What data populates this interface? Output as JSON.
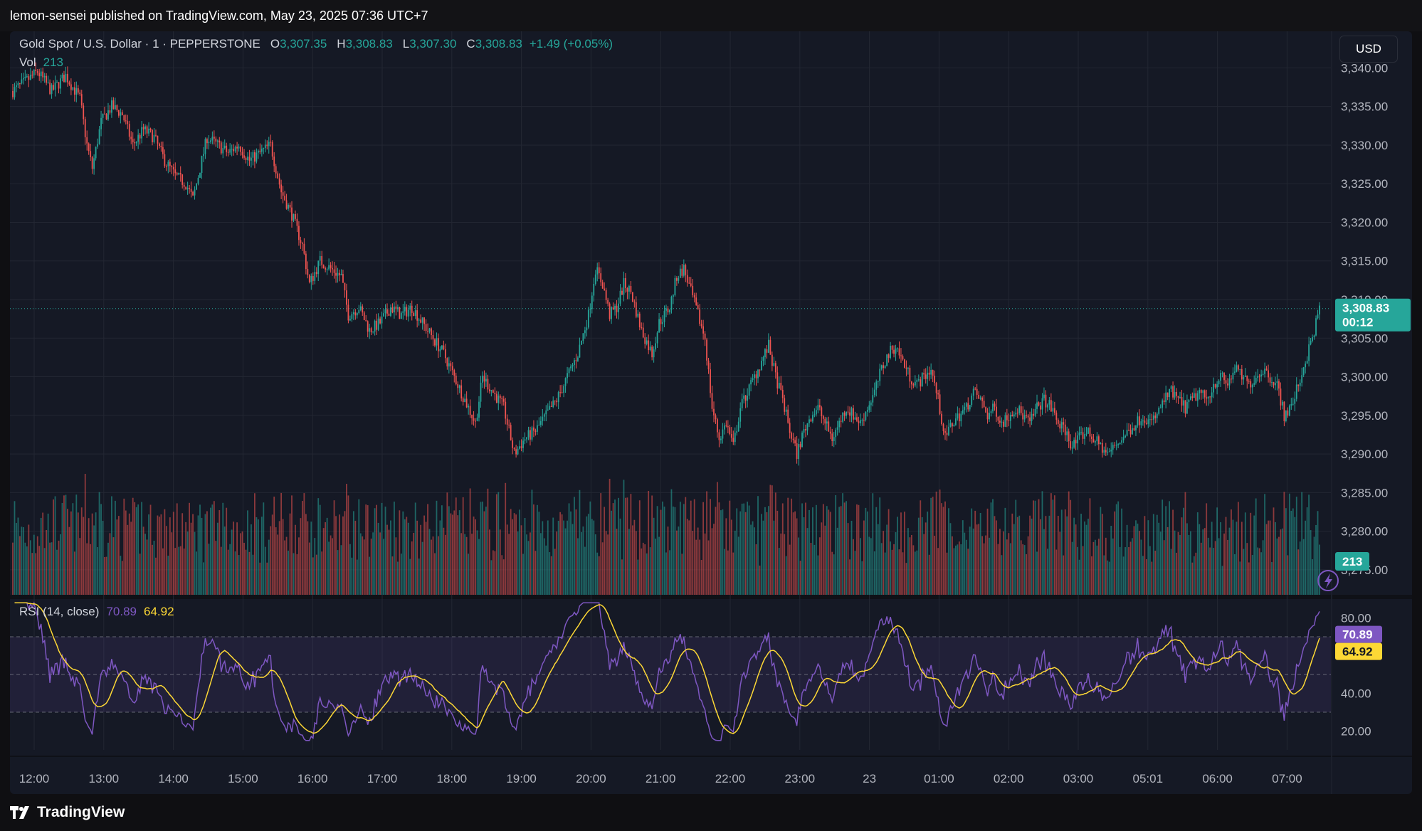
{
  "banner": {
    "text": "lemon-sensei published on TradingView.com, May 23, 2025 07:36 UTC+7"
  },
  "brand": {
    "name": "TradingView"
  },
  "symbol": {
    "title": "Gold Spot / U.S. Dollar · 1 · PEPPERSTONE",
    "open_label": "O",
    "open": "3,307.35",
    "high_label": "H",
    "high": "3,308.83",
    "low_label": "L",
    "low": "3,307.30",
    "close_label": "C",
    "close": "3,308.83",
    "change": "+1.49 (+0.05%)"
  },
  "volume_legend": {
    "label": "Vol",
    "value": "213"
  },
  "rsi_legend": {
    "label": "RSI (14, close)",
    "rsi": "70.89",
    "ma": "64.92"
  },
  "currency": {
    "label": "USD"
  },
  "price_badge": {
    "price": "3,308.83",
    "countdown": "00:12"
  },
  "volume_badge": {
    "value": "213"
  },
  "rsi_badges": {
    "rsi": "70.89",
    "ma": "64.92"
  },
  "colors": {
    "up": "#26a69a",
    "down": "#ef5350",
    "rsi_line": "#7e57c2",
    "rsi_ma": "#fdd835",
    "background": "#151925",
    "grid": "#232733"
  },
  "chart_data": [
    {
      "type": "candlestick",
      "title": "Gold Spot / U.S. Dollar · 1 · PEPPERSTONE",
      "x_ticks": [
        "12:00",
        "13:00",
        "14:00",
        "15:00",
        "16:00",
        "17:00",
        "18:00",
        "19:00",
        "20:00",
        "21:00",
        "22:00",
        "23:00",
        "23",
        "01:00",
        "02:00",
        "03:00",
        "05:01",
        "06:00",
        "07:00"
      ],
      "y_ticks": [
        "3,340.00",
        "3,335.00",
        "3,330.00",
        "3,325.00",
        "3,320.00",
        "3,315.00",
        "3,310.00",
        "3,305.00",
        "3,300.00",
        "3,295.00",
        "3,290.00",
        "3,285.00",
        "3,280.00",
        "3,275.00"
      ],
      "ylim": [
        3272.5,
        3344
      ],
      "last_price": 3308.83,
      "close_path": [
        [
          0,
          3337
        ],
        [
          6,
          3338
        ],
        [
          14,
          3339.5
        ],
        [
          22,
          3337
        ],
        [
          30,
          3339
        ],
        [
          38,
          3336
        ],
        [
          42,
          3330
        ],
        [
          45,
          3327
        ],
        [
          50,
          3333
        ],
        [
          56,
          3335
        ],
        [
          62,
          3334
        ],
        [
          68,
          3330
        ],
        [
          74,
          3332
        ],
        [
          80,
          3331
        ],
        [
          86,
          3328
        ],
        [
          92,
          3326
        ],
        [
          98,
          3325
        ],
        [
          102,
          3323
        ],
        [
          106,
          3327
        ],
        [
          110,
          3331
        ],
        [
          116,
          3330
        ],
        [
          122,
          3329
        ],
        [
          128,
          3330
        ],
        [
          134,
          3328
        ],
        [
          140,
          3329
        ],
        [
          146,
          3330
        ],
        [
          152,
          3324
        ],
        [
          158,
          3321
        ],
        [
          164,
          3317
        ],
        [
          168,
          3312
        ],
        [
          174,
          3315
        ],
        [
          180,
          3314
        ],
        [
          186,
          3313
        ],
        [
          190,
          3308
        ],
        [
          196,
          3309
        ],
        [
          202,
          3306
        ],
        [
          208,
          3307
        ],
        [
          214,
          3309
        ],
        [
          220,
          3308
        ],
        [
          226,
          3309
        ],
        [
          232,
          3307
        ],
        [
          238,
          3305
        ],
        [
          244,
          3303
        ],
        [
          250,
          3300
        ],
        [
          256,
          3297
        ],
        [
          262,
          3294
        ],
        [
          266,
          3300
        ],
        [
          272,
          3298
        ],
        [
          278,
          3296
        ],
        [
          284,
          3290
        ],
        [
          290,
          3292
        ],
        [
          296,
          3293
        ],
        [
          302,
          3295
        ],
        [
          308,
          3297
        ],
        [
          314,
          3300
        ],
        [
          320,
          3303
        ],
        [
          326,
          3308
        ],
        [
          330,
          3314
        ],
        [
          334,
          3312
        ],
        [
          338,
          3308
        ],
        [
          342,
          3309
        ],
        [
          346,
          3312
        ],
        [
          350,
          3311
        ],
        [
          356,
          3306
        ],
        [
          362,
          3303
        ],
        [
          366,
          3307
        ],
        [
          372,
          3309
        ],
        [
          376,
          3313
        ],
        [
          380,
          3314
        ],
        [
          384,
          3311
        ],
        [
          388,
          3308
        ],
        [
          392,
          3305
        ],
        [
          396,
          3296
        ],
        [
          400,
          3292
        ],
        [
          404,
          3294
        ],
        [
          408,
          3291
        ],
        [
          412,
          3296
        ],
        [
          416,
          3298
        ],
        [
          420,
          3300
        ],
        [
          424,
          3302
        ],
        [
          428,
          3304
        ],
        [
          432,
          3300
        ],
        [
          436,
          3297
        ],
        [
          440,
          3293
        ],
        [
          444,
          3290
        ],
        [
          448,
          3293
        ],
        [
          452,
          3295
        ],
        [
          456,
          3296
        ],
        [
          460,
          3294
        ],
        [
          464,
          3292
        ],
        [
          468,
          3294
        ],
        [
          472,
          3296
        ],
        [
          476,
          3295
        ],
        [
          480,
          3294
        ],
        [
          484,
          3296
        ],
        [
          488,
          3298
        ],
        [
          492,
          3301
        ],
        [
          496,
          3303
        ],
        [
          500,
          3304
        ],
        [
          504,
          3302
        ],
        [
          508,
          3300
        ],
        [
          512,
          3299
        ],
        [
          516,
          3300
        ],
        [
          520,
          3301
        ],
        [
          524,
          3297
        ],
        [
          528,
          3292
        ],
        [
          532,
          3294
        ],
        [
          536,
          3295
        ],
        [
          540,
          3296
        ],
        [
          544,
          3298
        ],
        [
          548,
          3297
        ],
        [
          552,
          3295
        ],
        [
          556,
          3296
        ],
        [
          560,
          3294
        ],
        [
          564,
          3295
        ],
        [
          568,
          3296
        ],
        [
          572,
          3295
        ],
        [
          576,
          3294
        ],
        [
          580,
          3296
        ],
        [
          584,
          3297
        ],
        [
          588,
          3296
        ],
        [
          592,
          3294
        ],
        [
          596,
          3293
        ],
        [
          600,
          3291
        ],
        [
          604,
          3292
        ],
        [
          608,
          3293
        ],
        [
          612,
          3292
        ],
        [
          616,
          3291
        ],
        [
          620,
          3290
        ],
        [
          624,
          3291
        ],
        [
          628,
          3292
        ],
        [
          632,
          3293
        ],
        [
          636,
          3294
        ],
        [
          640,
          3295
        ],
        [
          644,
          3294
        ],
        [
          648,
          3295
        ],
        [
          652,
          3297
        ],
        [
          656,
          3298
        ],
        [
          660,
          3297
        ],
        [
          664,
          3296
        ],
        [
          668,
          3297
        ],
        [
          672,
          3298
        ],
        [
          676,
          3297
        ],
        [
          680,
          3299
        ],
        [
          684,
          3300
        ],
        [
          688,
          3299
        ],
        [
          692,
          3301
        ],
        [
          696,
          3300
        ],
        [
          700,
          3299
        ],
        [
          704,
          3300
        ],
        [
          708,
          3301
        ],
        [
          712,
          3300
        ],
        [
          716,
          3299
        ],
        [
          720,
          3295
        ],
        [
          724,
          3296
        ],
        [
          728,
          3299
        ],
        [
          732,
          3302
        ],
        [
          736,
          3305
        ],
        [
          740,
          3308.83
        ]
      ]
    },
    {
      "type": "bar",
      "title": "Vol",
      "last_value": 213
    },
    {
      "type": "line",
      "title": "RSI (14, close)",
      "y_ticks": [
        "80.00",
        "40.00",
        "20.00"
      ],
      "ylim": [
        10,
        90
      ],
      "bands": [
        70,
        50,
        30
      ],
      "series": [
        {
          "name": "RSI",
          "last": 70.89
        },
        {
          "name": "MA",
          "last": 64.92
        }
      ]
    }
  ]
}
